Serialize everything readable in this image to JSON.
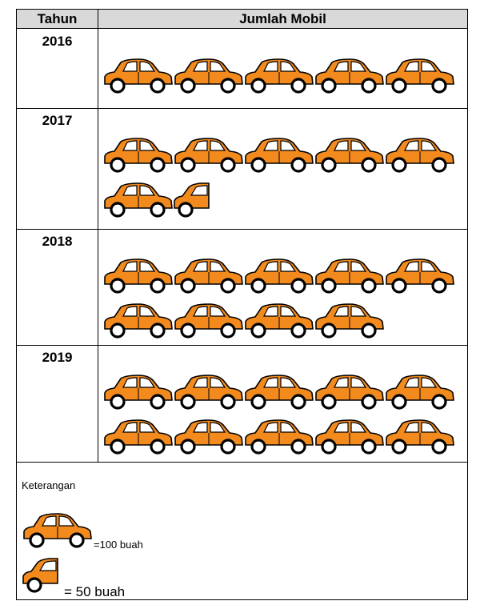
{
  "table": {
    "header_year": "Tahun",
    "header_count": "Jumlah Mobil"
  },
  "chart_data": {
    "type": "pictograph",
    "unit_full": 100,
    "unit_half": 50,
    "rows": [
      {
        "year": "2016",
        "full": 5,
        "half": 0,
        "value": 500
      },
      {
        "year": "2017",
        "full": 6,
        "half": 1,
        "value": 650
      },
      {
        "year": "2018",
        "full": 9,
        "half": 0,
        "value": 900
      },
      {
        "year": "2019",
        "full": 10,
        "half": 0,
        "value": 1000
      }
    ]
  },
  "legend": {
    "title": "Keterangan",
    "full_label": "=100 buah",
    "half_label": "= 50 buah"
  },
  "colors": {
    "car_body": "#f28a1e",
    "outline": "#000000",
    "header_bg": "#d9d9d9"
  }
}
